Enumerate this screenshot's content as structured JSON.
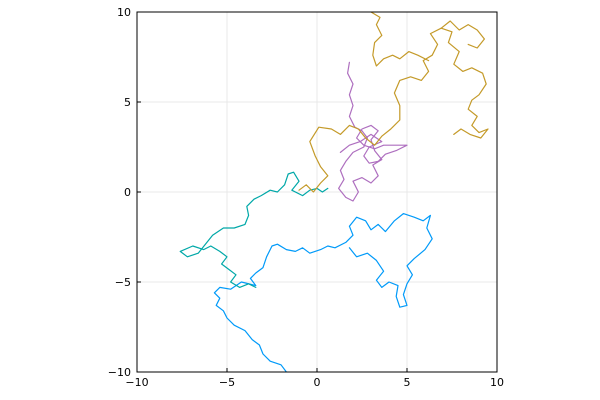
{
  "chart_data": {
    "type": "line",
    "title": "",
    "xlabel": "",
    "ylabel": "",
    "xlim": [
      -10,
      10
    ],
    "ylim": [
      -10,
      10
    ],
    "xticks": [
      -10,
      -5,
      0,
      5,
      10
    ],
    "yticks": [
      -10,
      -5,
      0,
      5,
      10
    ],
    "xtick_labels": [
      "−10",
      "−5",
      "0",
      "5",
      "10"
    ],
    "ytick_labels": [
      "−10",
      "−5",
      "0",
      "5",
      "10"
    ],
    "grid": true,
    "legend": "none",
    "aspect": "equal",
    "series": [
      {
        "color": "#009af9",
        "points": [
          [
            -1.7,
            -10.0
          ],
          [
            -2.0,
            -9.6
          ],
          [
            -2.6,
            -9.4
          ],
          [
            -3.0,
            -9.0
          ],
          [
            -3.2,
            -8.5
          ],
          [
            -3.6,
            -8.2
          ],
          [
            -4.0,
            -7.7
          ],
          [
            -4.6,
            -7.4
          ],
          [
            -5.0,
            -7.0
          ],
          [
            -5.2,
            -6.6
          ],
          [
            -5.6,
            -6.3
          ],
          [
            -5.4,
            -5.9
          ],
          [
            -5.7,
            -5.6
          ],
          [
            -5.4,
            -5.3
          ],
          [
            -4.8,
            -5.4
          ],
          [
            -4.2,
            -5.0
          ],
          [
            -3.4,
            -5.2
          ],
          [
            -3.7,
            -4.8
          ],
          [
            -3.4,
            -4.5
          ],
          [
            -3.0,
            -4.2
          ],
          [
            -2.8,
            -3.6
          ],
          [
            -2.5,
            -3.0
          ],
          [
            -2.2,
            -2.9
          ],
          [
            -1.7,
            -3.2
          ],
          [
            -1.2,
            -3.3
          ],
          [
            -0.8,
            -3.1
          ],
          [
            -0.4,
            -3.4
          ],
          [
            0.2,
            -3.2
          ],
          [
            0.6,
            -3.0
          ],
          [
            1.0,
            -3.1
          ],
          [
            1.6,
            -2.8
          ],
          [
            2.0,
            -2.4
          ],
          [
            1.8,
            -1.9
          ],
          [
            2.2,
            -1.4
          ],
          [
            2.7,
            -1.6
          ],
          [
            3.0,
            -2.1
          ],
          [
            3.4,
            -1.8
          ],
          [
            3.8,
            -2.2
          ],
          [
            4.3,
            -1.6
          ],
          [
            4.8,
            -1.2
          ],
          [
            5.4,
            -1.4
          ],
          [
            5.9,
            -1.6
          ],
          [
            6.3,
            -1.3
          ],
          [
            6.1,
            -2.0
          ],
          [
            6.4,
            -2.6
          ],
          [
            6.0,
            -3.2
          ],
          [
            5.4,
            -3.7
          ],
          [
            5.0,
            -4.1
          ],
          [
            5.3,
            -4.6
          ],
          [
            5.0,
            -5.1
          ],
          [
            4.8,
            -5.7
          ],
          [
            5.0,
            -6.3
          ],
          [
            4.6,
            -6.4
          ],
          [
            4.4,
            -5.8
          ],
          [
            4.5,
            -5.2
          ],
          [
            4.0,
            -5.0
          ],
          [
            3.6,
            -5.3
          ],
          [
            3.3,
            -4.9
          ],
          [
            3.7,
            -4.4
          ],
          [
            3.3,
            -3.8
          ],
          [
            2.8,
            -3.4
          ],
          [
            2.2,
            -3.6
          ],
          [
            1.8,
            -3.1
          ]
        ]
      },
      {
        "color": "#00a8a8",
        "points": [
          [
            -3.4,
            -5.3
          ],
          [
            -3.8,
            -5.1
          ],
          [
            -4.3,
            -5.3
          ],
          [
            -4.8,
            -5.0
          ],
          [
            -4.5,
            -4.6
          ],
          [
            -4.9,
            -4.3
          ],
          [
            -5.3,
            -4.0
          ],
          [
            -5.0,
            -3.6
          ],
          [
            -5.4,
            -3.3
          ],
          [
            -5.9,
            -3.0
          ],
          [
            -6.3,
            -3.2
          ],
          [
            -6.9,
            -3.0
          ],
          [
            -7.6,
            -3.3
          ],
          [
            -7.2,
            -3.6
          ],
          [
            -6.6,
            -3.4
          ],
          [
            -6.2,
            -2.9
          ],
          [
            -5.8,
            -2.4
          ],
          [
            -5.2,
            -2.0
          ],
          [
            -4.6,
            -2.0
          ],
          [
            -4.0,
            -1.8
          ],
          [
            -3.8,
            -1.3
          ],
          [
            -3.9,
            -0.8
          ],
          [
            -3.5,
            -0.4
          ],
          [
            -3.1,
            -0.2
          ],
          [
            -2.6,
            0.1
          ],
          [
            -2.2,
            0.0
          ],
          [
            -1.8,
            0.4
          ],
          [
            -1.6,
            1.0
          ],
          [
            -1.3,
            1.1
          ],
          [
            -1.0,
            0.6
          ],
          [
            -1.4,
            0.1
          ],
          [
            -0.8,
            -0.2
          ],
          [
            -0.4,
            0.1
          ],
          [
            0.0,
            0.2
          ],
          [
            0.3,
            0.0
          ],
          [
            0.6,
            0.2
          ]
        ]
      },
      {
        "color": "#ae6fbf",
        "points": [
          [
            1.8,
            7.2
          ],
          [
            1.7,
            6.6
          ],
          [
            2.0,
            6.0
          ],
          [
            1.8,
            5.4
          ],
          [
            2.0,
            4.8
          ],
          [
            1.8,
            4.2
          ],
          [
            2.1,
            3.6
          ],
          [
            2.5,
            3.4
          ],
          [
            2.8,
            3.0
          ],
          [
            2.6,
            2.5
          ],
          [
            2.0,
            2.2
          ],
          [
            1.6,
            1.7
          ],
          [
            1.3,
            1.2
          ],
          [
            1.5,
            0.7
          ],
          [
            1.2,
            0.2
          ],
          [
            1.6,
            -0.3
          ],
          [
            2.0,
            -0.5
          ],
          [
            2.3,
            0.0
          ],
          [
            2.0,
            0.6
          ],
          [
            2.5,
            0.8
          ],
          [
            3.0,
            0.5
          ],
          [
            3.4,
            0.9
          ],
          [
            3.1,
            1.5
          ],
          [
            3.6,
            1.8
          ],
          [
            3.2,
            2.3
          ],
          [
            3.0,
            2.9
          ],
          [
            3.4,
            3.4
          ],
          [
            3.0,
            3.7
          ],
          [
            2.5,
            3.5
          ],
          [
            2.2,
            3.0
          ],
          [
            2.6,
            2.6
          ],
          [
            3.2,
            2.4
          ],
          [
            3.7,
            2.6
          ],
          [
            4.2,
            2.6
          ],
          [
            5.0,
            2.6
          ],
          [
            4.4,
            2.3
          ],
          [
            3.8,
            2.1
          ],
          [
            3.4,
            1.7
          ],
          [
            2.9,
            1.6
          ],
          [
            2.6,
            2.0
          ],
          [
            2.9,
            2.5
          ],
          [
            3.6,
            2.8
          ],
          [
            3.0,
            3.2
          ],
          [
            2.4,
            2.8
          ],
          [
            1.8,
            2.6
          ],
          [
            1.3,
            2.2
          ]
        ]
      },
      {
        "color": "#c49a29",
        "points": [
          [
            -1.0,
            0.1
          ],
          [
            -0.6,
            0.4
          ],
          [
            -0.2,
            0.0
          ],
          [
            0.2,
            0.5
          ],
          [
            0.6,
            0.9
          ],
          [
            0.2,
            1.4
          ],
          [
            -0.1,
            2.0
          ],
          [
            -0.4,
            2.8
          ],
          [
            0.1,
            3.6
          ],
          [
            0.8,
            3.5
          ],
          [
            1.3,
            3.2
          ],
          [
            1.8,
            3.7
          ],
          [
            2.3,
            3.5
          ],
          [
            2.7,
            3.0
          ],
          [
            3.2,
            2.6
          ],
          [
            3.6,
            3.1
          ],
          [
            4.1,
            3.5
          ],
          [
            4.6,
            4.0
          ],
          [
            4.6,
            4.8
          ],
          [
            4.3,
            5.5
          ],
          [
            4.6,
            6.2
          ],
          [
            5.2,
            6.4
          ],
          [
            5.8,
            6.2
          ],
          [
            6.2,
            6.7
          ],
          [
            5.9,
            7.3
          ],
          [
            6.4,
            7.6
          ],
          [
            6.7,
            8.2
          ],
          [
            6.3,
            8.8
          ],
          [
            6.9,
            9.1
          ],
          [
            7.5,
            8.9
          ],
          [
            7.3,
            8.3
          ],
          [
            7.9,
            7.8
          ],
          [
            7.6,
            7.1
          ],
          [
            8.1,
            6.7
          ],
          [
            8.6,
            6.9
          ],
          [
            9.2,
            6.6
          ],
          [
            9.4,
            6.0
          ],
          [
            9.0,
            5.4
          ],
          [
            8.6,
            5.1
          ],
          [
            8.4,
            4.6
          ],
          [
            8.9,
            4.2
          ],
          [
            8.6,
            3.7
          ],
          [
            9.0,
            3.3
          ],
          [
            9.5,
            3.5
          ],
          [
            9.1,
            3.0
          ],
          [
            8.5,
            3.2
          ],
          [
            8.0,
            3.5
          ],
          [
            7.6,
            3.2
          ]
        ]
      },
      {
        "color": "#c49a29",
        "points": [
          [
            6.2,
            7.3
          ],
          [
            5.6,
            7.6
          ],
          [
            5.1,
            7.8
          ],
          [
            4.6,
            7.4
          ],
          [
            4.2,
            7.6
          ],
          [
            3.7,
            7.4
          ],
          [
            3.3,
            7.0
          ],
          [
            3.1,
            7.6
          ],
          [
            3.2,
            8.3
          ],
          [
            3.6,
            8.7
          ],
          [
            3.3,
            9.3
          ],
          [
            3.5,
            9.7
          ],
          [
            3.0,
            10.0
          ]
        ]
      },
      {
        "color": "#c49a29",
        "points": [
          [
            6.9,
            9.1
          ],
          [
            7.4,
            9.5
          ],
          [
            7.9,
            9.0
          ],
          [
            8.4,
            9.3
          ],
          [
            8.9,
            9.0
          ],
          [
            9.3,
            8.5
          ],
          [
            8.9,
            8.0
          ],
          [
            8.4,
            8.2
          ]
        ]
      }
    ]
  }
}
